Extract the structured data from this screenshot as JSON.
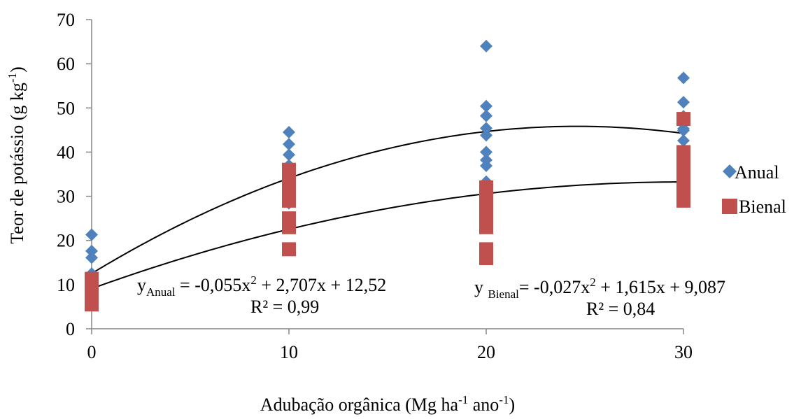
{
  "chart_data": {
    "type": "scatter",
    "xlabel": {
      "base": "Adubação orgânica (Mg ha",
      "sup1": "-1",
      "mid": " ano",
      "sup2": "-1",
      "end": ")"
    },
    "ylabel": {
      "base": "Teor de potássio (g kg",
      "sup": "-1",
      "end": ")"
    },
    "x_ticks": [
      0,
      10,
      20,
      30
    ],
    "y_ticks": [
      0,
      10,
      20,
      30,
      40,
      50,
      60,
      70
    ],
    "xlim": [
      0,
      30
    ],
    "ylim": [
      0,
      70
    ],
    "grid": false,
    "legend_position": "right",
    "series": [
      {
        "name": "Anual",
        "marker": "diamond",
        "color": "#4F81BD",
        "points": [
          [
            0,
            21.3
          ],
          [
            0,
            17.6
          ],
          [
            0,
            16.1
          ],
          [
            0,
            12.5
          ],
          [
            0,
            11.0
          ],
          [
            0,
            9.5
          ],
          [
            10,
            44.5
          ],
          [
            10,
            41.8
          ],
          [
            10,
            39.4
          ],
          [
            10,
            37.0
          ],
          [
            10,
            35.2
          ],
          [
            10,
            33.0
          ],
          [
            10,
            30.5
          ],
          [
            10,
            28.4
          ],
          [
            20,
            64.0
          ],
          [
            20,
            50.4
          ],
          [
            20,
            48.2
          ],
          [
            20,
            45.4
          ],
          [
            20,
            43.8
          ],
          [
            20,
            40.0
          ],
          [
            20,
            38.2
          ],
          [
            20,
            36.9
          ],
          [
            20,
            33.3
          ],
          [
            30,
            56.8
          ],
          [
            30,
            51.3
          ],
          [
            30,
            48.1
          ],
          [
            30,
            45.3
          ],
          [
            30,
            44.9
          ],
          [
            30,
            42.6
          ]
        ]
      },
      {
        "name": "Bienal",
        "marker": "square",
        "color": "#C0504D",
        "points": [
          [
            0,
            11.3
          ],
          [
            0,
            10.0
          ],
          [
            0,
            8.8
          ],
          [
            0,
            7.6
          ],
          [
            0,
            6.5
          ],
          [
            0,
            5.5
          ],
          [
            10,
            36.0
          ],
          [
            10,
            34.5
          ],
          [
            10,
            33.0
          ],
          [
            10,
            31.5
          ],
          [
            10,
            30.0
          ],
          [
            10,
            29.0
          ],
          [
            10,
            25.0
          ],
          [
            10,
            23.0
          ],
          [
            10,
            18.0
          ],
          [
            20,
            32.0
          ],
          [
            20,
            30.5
          ],
          [
            20,
            27.5
          ],
          [
            20,
            26.0
          ],
          [
            20,
            24.5
          ],
          [
            20,
            23.0
          ],
          [
            20,
            18.0
          ],
          [
            20,
            16.0
          ],
          [
            30,
            47.5
          ],
          [
            30,
            40.0
          ],
          [
            30,
            38.0
          ],
          [
            30,
            36.0
          ],
          [
            30,
            34.5
          ],
          [
            30,
            33.0
          ],
          [
            30,
            31.5
          ],
          [
            30,
            30.0
          ],
          [
            30,
            29.0
          ]
        ]
      }
    ],
    "trendlines": [
      {
        "series": "Anual",
        "coefficients": {
          "a": -0.055,
          "b": 2.707,
          "c": 12.52
        }
      },
      {
        "series": "Bienal",
        "coefficients": {
          "a": -0.027,
          "b": 1.615,
          "c": 9.087
        }
      }
    ],
    "annotations": [
      {
        "prefix": "y",
        "sub": "Anual",
        "lead": " = -0,055x",
        "sup": "2",
        "rest": " + 2,707x + 12,52",
        "r2": "R² = 0,99"
      },
      {
        "prefix": "y ",
        "sub": "Bienal",
        "lead": "= -0,027x",
        "sup": "2",
        "rest": " + 1,615x + 9,087",
        "r2": "R² = 0,84"
      }
    ]
  }
}
